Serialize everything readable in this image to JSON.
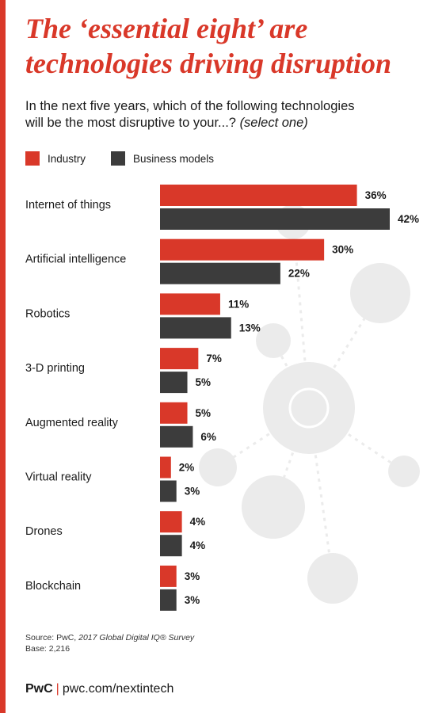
{
  "header": {
    "title_line1": "The ‘essential eight’ are",
    "title_line2": "technologies driving disruption",
    "question_line1": "In the next five years, which of the following technologies",
    "question_line2": "will be the most disruptive to your...?",
    "question_emphasis": "(select one)"
  },
  "footnote": {
    "source_prefix": "Source: PwC,",
    "source_title": "2017 Global Digital IQ® Survey",
    "base": "Base: 2,216"
  },
  "footer": {
    "brand": "PwC",
    "separator": "|",
    "url": "pwc.com/nextintech"
  },
  "colors": {
    "industry": "#d93829",
    "business_models": "#3c3c3c",
    "background_icons": "#ebebeb",
    "accent": "#d93829"
  },
  "chart_data": {
    "type": "bar",
    "orientation": "horizontal",
    "categories": [
      "Internet of things",
      "Artificial intelligence",
      "Robotics",
      "3-D printing",
      "Augmented reality",
      "Virtual reality",
      "Drones",
      "Blockchain"
    ],
    "series": [
      {
        "name": "Industry",
        "values": [
          36,
          30,
          11,
          7,
          5,
          2,
          4,
          3
        ],
        "color": "#d93829"
      },
      {
        "name": "Business models",
        "values": [
          42,
          22,
          13,
          5,
          6,
          3,
          4,
          3
        ],
        "color": "#3c3c3c"
      }
    ],
    "value_suffix": "%",
    "xlim": [
      0,
      42
    ],
    "grid": false,
    "legend_placement": "top-left"
  }
}
